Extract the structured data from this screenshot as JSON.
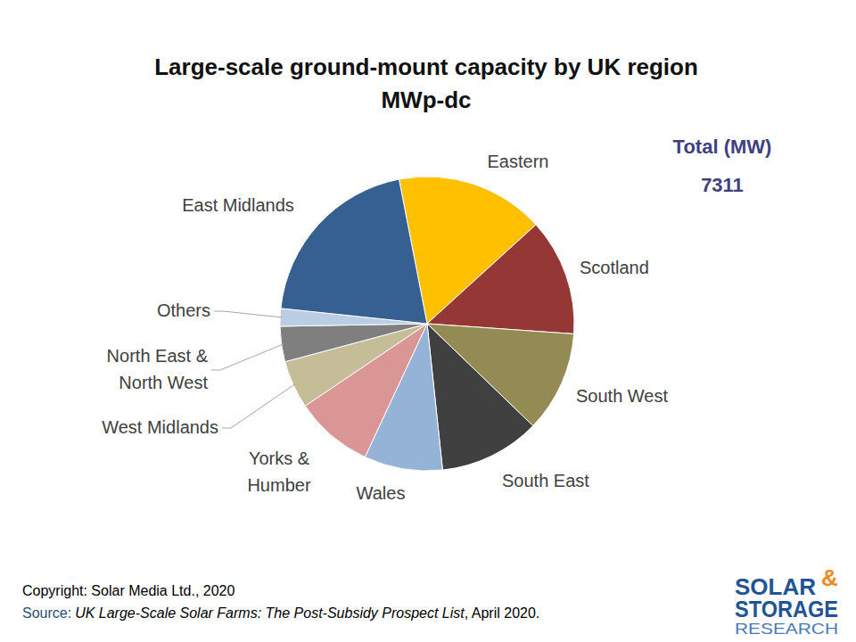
{
  "chart_data": {
    "type": "pie",
    "title": "Large-scale ground-mount capacity by UK region",
    "subtitle": "MWp-dc",
    "categories": [
      "Eastern",
      "Scotland",
      "South West",
      "South East",
      "Wales",
      "Yorks & Humber",
      "West Midlands",
      "North East & North West",
      "Others",
      "East Midlands"
    ],
    "values": [
      1192,
      940,
      812,
      812,
      630,
      630,
      386,
      284,
      142,
      1483
    ],
    "colors": [
      "#ffc000",
      "#953735",
      "#948a54",
      "#404040",
      "#95b3d7",
      "#d99694",
      "#c4bd97",
      "#7f7f7f",
      "#b9cde5",
      "#376092"
    ],
    "total_label": "Total (MW)",
    "total": 7311
  },
  "footer": {
    "copyright": "Copyright: Solar Media Ltd., 2020",
    "source_label": "Source:",
    "source_title": "UK Large-Scale Solar Farms: The Post-Subsidy Prospect List",
    "source_date": ", April 2020."
  },
  "logo": {
    "line1": "SOLAR",
    "ampersand": "&",
    "line2": "STORAGE",
    "line3": "RESEARCH"
  }
}
